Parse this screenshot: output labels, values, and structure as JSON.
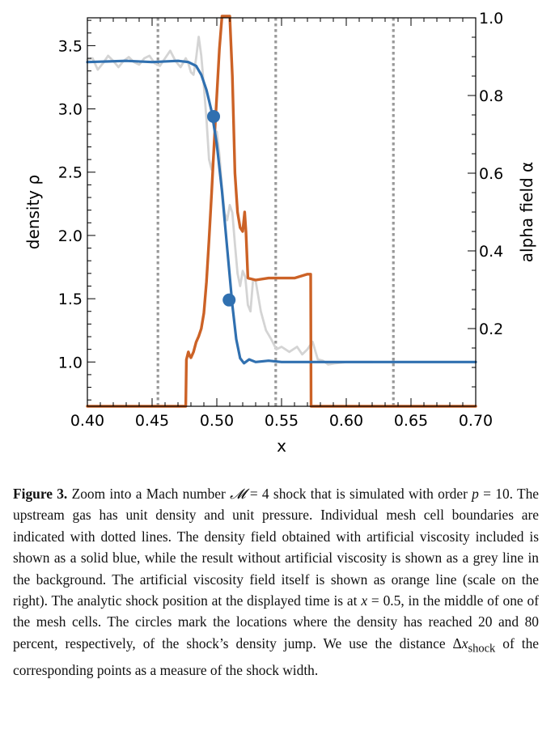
{
  "chart_data": {
    "type": "line",
    "xlabel": "x",
    "ylabel_left": "density ρ",
    "ylabel_right": "alpha field α",
    "xlim": [
      0.4,
      0.7
    ],
    "ylim_left": [
      0.65,
      3.72
    ],
    "ylim_right": [
      0.0,
      1.0
    ],
    "x_ticks": [
      "0.40",
      "0.45",
      "0.50",
      "0.55",
      "0.60",
      "0.65",
      "0.70"
    ],
    "y_left_ticks": [
      "1.0",
      "1.5",
      "2.0",
      "2.5",
      "3.0",
      "3.5"
    ],
    "y_right_ticks": [
      "0.2",
      "0.4",
      "0.6",
      "0.8",
      "1.0"
    ],
    "mesh_cell_boundaries": [
      0.4545,
      0.5455,
      0.6364
    ],
    "grid": false,
    "legend": "none",
    "colors": {
      "density_av": "#3070b0",
      "density_noav": "#d4d4d4",
      "alpha": "#cc6226",
      "boundary": "#999999"
    },
    "series": [
      {
        "axis": "left",
        "x": [
          0.4,
          0.43,
          0.45,
          0.47,
          0.478,
          0.484,
          0.488,
          0.492,
          0.496,
          0.5,
          0.504,
          0.508,
          0.512,
          0.515,
          0.518,
          0.521,
          0.525,
          0.53,
          0.54,
          0.55,
          0.57,
          0.6,
          0.65,
          0.7
        ],
        "values": [
          3.37,
          3.38,
          3.37,
          3.38,
          3.37,
          3.34,
          3.27,
          3.15,
          2.98,
          2.72,
          2.35,
          1.9,
          1.45,
          1.18,
          1.03,
          0.99,
          1.02,
          1.0,
          1.01,
          1.0,
          1.0,
          1.0,
          1.0,
          1.0
        ]
      },
      {
        "axis": "left",
        "x": [
          0.4,
          0.404,
          0.408,
          0.412,
          0.416,
          0.42,
          0.424,
          0.428,
          0.432,
          0.436,
          0.44,
          0.444,
          0.448,
          0.452,
          0.456,
          0.46,
          0.464,
          0.468,
          0.472,
          0.476,
          0.478,
          0.48,
          0.482,
          0.484,
          0.486,
          0.488,
          0.49,
          0.492,
          0.494,
          0.496,
          0.498,
          0.5,
          0.502,
          0.504,
          0.506,
          0.508,
          0.51,
          0.512,
          0.514,
          0.516,
          0.518,
          0.52,
          0.522,
          0.524,
          0.526,
          0.528,
          0.53,
          0.534,
          0.538,
          0.542,
          0.546,
          0.55,
          0.556,
          0.562,
          0.566,
          0.57,
          0.574,
          0.578,
          0.582,
          0.586,
          0.592,
          0.6,
          0.61,
          0.62
        ],
        "values": [
          3.39,
          3.4,
          3.31,
          3.36,
          3.42,
          3.38,
          3.33,
          3.38,
          3.41,
          3.37,
          3.35,
          3.4,
          3.42,
          3.36,
          3.34,
          3.4,
          3.46,
          3.38,
          3.33,
          3.4,
          3.36,
          3.29,
          3.27,
          3.4,
          3.57,
          3.42,
          3.18,
          2.92,
          2.6,
          2.52,
          2.67,
          2.82,
          2.64,
          2.38,
          2.18,
          2.12,
          2.24,
          2.18,
          1.93,
          1.7,
          1.6,
          1.72,
          1.67,
          1.45,
          1.4,
          1.65,
          1.64,
          1.4,
          1.25,
          1.18,
          1.1,
          1.12,
          1.08,
          1.12,
          1.06,
          1.1,
          1.16,
          1.02,
          1.01,
          0.98,
          0.99,
          1.0,
          1.0,
          1.0
        ]
      },
      {
        "axis": "right",
        "x": [
          0.4,
          0.476,
          0.4765,
          0.478,
          0.479,
          0.48,
          0.482,
          0.484,
          0.486,
          0.488,
          0.49,
          0.492,
          0.494,
          0.496,
          0.498,
          0.5,
          0.502,
          0.504,
          0.506,
          0.508,
          0.51,
          0.512,
          0.514,
          0.516,
          0.518,
          0.52,
          0.5215,
          0.5225,
          0.524,
          0.53,
          0.54,
          0.55,
          0.56,
          0.57,
          0.5725,
          0.5728,
          0.6,
          0.7
        ],
        "values": [
          0.0,
          0.0,
          0.12,
          0.14,
          0.13,
          0.125,
          0.14,
          0.165,
          0.18,
          0.2,
          0.24,
          0.32,
          0.43,
          0.55,
          0.68,
          0.8,
          0.92,
          1.01,
          1.06,
          1.08,
          1.03,
          0.85,
          0.6,
          0.5,
          0.46,
          0.45,
          0.5,
          0.45,
          0.33,
          0.325,
          0.33,
          0.33,
          0.33,
          0.34,
          0.34,
          0.0,
          0.0,
          0.0
        ]
      }
    ],
    "markers": [
      {
        "x": 0.4975,
        "y": 2.94
      },
      {
        "x": 0.5095,
        "y": 1.49
      }
    ]
  },
  "caption": {
    "label": "Figure 3.",
    "text_before_mach": " Zoom into a Mach number ",
    "mach_symbol": "𝓜",
    "text_after_mach": " = 4 shock that is simulated with order ",
    "p_symbol": "p",
    "text_after_p": " = 10. The upstream gas has unit density and unit pressure. Individual mesh cell boundaries are indicated with dotted lines. The density field obtained with artificial viscosity included is shown as a solid blue, while the result without artificial viscosity is shown as a grey line in the background. The artificial viscosity field itself is shown as orange line (scale on the right). The analytic shock position at the displayed time is at ",
    "x_symbol": "x",
    "text_after_x": " = 0.5, in the middle of one of the mesh cells. The circles mark the locations where the density has reached 20 and 80 percent, respectively, of the shock’s density jump. We use the distance ",
    "delta_symbol": "Δ",
    "delta_x": "x",
    "delta_sub": "shock",
    "text_end": " of the corresponding points as a measure of the shock width."
  }
}
